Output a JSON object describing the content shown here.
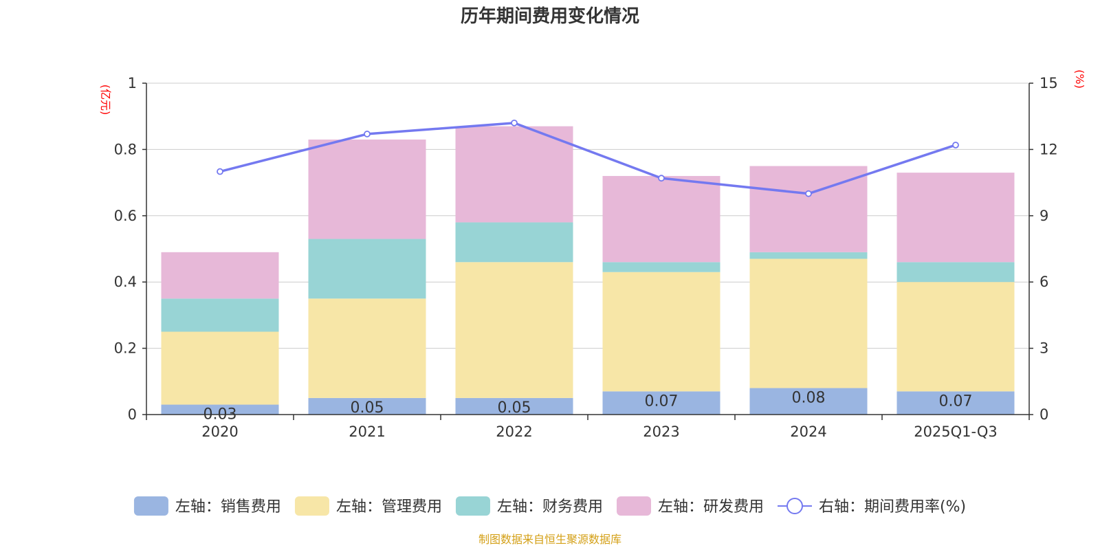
{
  "chart_data": {
    "type": "bar",
    "stacked": true,
    "title": "历年期间费用变化情况",
    "categories": [
      "2020",
      "2021",
      "2022",
      "2023",
      "2024",
      "2025Q1-Q3"
    ],
    "left_axis": {
      "unit": "(亿元)",
      "min": 0,
      "max": 1,
      "ticks": [
        "0",
        "0.2",
        "0.4",
        "0.6",
        "0.8",
        "1"
      ]
    },
    "right_axis": {
      "unit": "(%)",
      "min": 0,
      "max": 15,
      "ticks": [
        "0",
        "3",
        "6",
        "9",
        "12",
        "15"
      ]
    },
    "series": [
      {
        "name": "左轴：销售费用",
        "axis": "left",
        "color": "#9ab5e1",
        "values": [
          0.03,
          0.05,
          0.05,
          0.07,
          0.08,
          0.07
        ],
        "labels": [
          "0.03",
          "0.05",
          "0.05",
          "0.07",
          "0.08",
          "0.07"
        ]
      },
      {
        "name": "左轴：管理费用",
        "axis": "left",
        "color": "#f7e6a7",
        "values": [
          0.22,
          0.3,
          0.41,
          0.36,
          0.39,
          0.33
        ]
      },
      {
        "name": "左轴：财务费用",
        "axis": "left",
        "color": "#98d4d5",
        "values": [
          0.1,
          0.18,
          0.12,
          0.03,
          0.02,
          0.06
        ]
      },
      {
        "name": "左轴：研发费用",
        "axis": "left",
        "color": "#e7b8d8",
        "values": [
          0.14,
          0.3,
          0.29,
          0.26,
          0.26,
          0.27
        ]
      }
    ],
    "line_series": {
      "name": "右轴：期间费用率(%)",
      "axis": "right",
      "color": "#7479f0",
      "values": [
        11.0,
        12.7,
        13.2,
        10.7,
        10.0,
        12.2
      ]
    },
    "grid": true,
    "legend_position": "bottom"
  },
  "source_note": "制图数据来自恒生聚源数据库",
  "colors": {
    "axis_unit": "#ff0000",
    "source": "#d4a017",
    "grid": "#cccccc",
    "text": "#333333"
  }
}
